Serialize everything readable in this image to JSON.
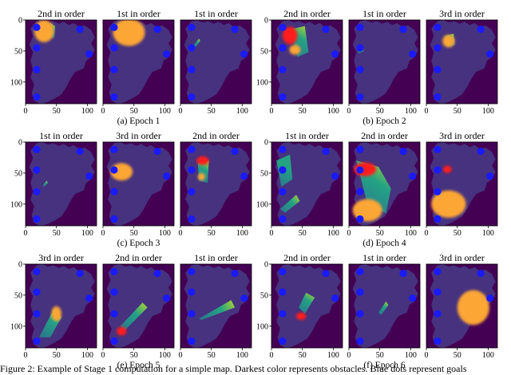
{
  "colors": {
    "background": "#440154",
    "free_space": "#46327e",
    "goal": "#1a1aff",
    "blob_orange": "#fca636",
    "blob_red": "#ff1a1a",
    "wedge_green": "#22a884",
    "wedge_yellow": "#bddf26"
  },
  "axis_ticks": {
    "x": [
      "0",
      "50",
      "100"
    ],
    "y": [
      "0",
      "50",
      "100"
    ],
    "xlim": [
      0,
      115
    ],
    "ylim": [
      0,
      135
    ]
  },
  "map": {
    "outline": [
      [
        18,
        2
      ],
      [
        27,
        0
      ],
      [
        36,
        4
      ],
      [
        45,
        2
      ],
      [
        54,
        6
      ],
      [
        62,
        3
      ],
      [
        70,
        8
      ],
      [
        78,
        5
      ],
      [
        86,
        11
      ],
      [
        96,
        9
      ],
      [
        106,
        16
      ],
      [
        112,
        28
      ],
      [
        106,
        38
      ],
      [
        112,
        48
      ],
      [
        106,
        60
      ],
      [
        98,
        66
      ],
      [
        94,
        78
      ],
      [
        80,
        84
      ],
      [
        72,
        96
      ],
      [
        66,
        108
      ],
      [
        58,
        120
      ],
      [
        48,
        126
      ],
      [
        36,
        132
      ],
      [
        24,
        136
      ],
      [
        14,
        130
      ],
      [
        10,
        118
      ],
      [
        14,
        104
      ],
      [
        8,
        92
      ],
      [
        12,
        80
      ],
      [
        8,
        66
      ],
      [
        12,
        52
      ],
      [
        6,
        40
      ],
      [
        12,
        26
      ],
      [
        8,
        14
      ]
    ],
    "goals": [
      [
        18,
        12
      ],
      [
        88,
        15
      ],
      [
        18,
        45
      ],
      [
        103,
        55
      ],
      [
        18,
        80
      ],
      [
        18,
        124
      ]
    ]
  },
  "groups": [
    {
      "caption": "(a) Epoch 1",
      "panels": [
        {
          "title": "2nd in order",
          "blobs": [
            {
              "cx": 30,
              "cy": 18,
              "rx": 16,
              "ry": 18,
              "color": "orange"
            }
          ],
          "wedges": [
            {
              "points": [
                [
                  40,
                  5
                ],
                [
                  48,
                  10
                ],
                [
                  46,
                  30
                ],
                [
                  40,
                  28
                ]
              ],
              "from": "green",
              "to": "yellow"
            }
          ]
        },
        {
          "title": "1st in order",
          "blobs": [
            {
              "cx": 42,
              "cy": 20,
              "rx": 26,
              "ry": 22,
              "color": "orange"
            }
          ],
          "wedges": []
        },
        {
          "title": "1st in order",
          "blobs": [],
          "wedges": [
            {
              "points": [
                [
                  22,
                  40
                ],
                [
                  30,
                  30
                ],
                [
                  32,
                  34
                ],
                [
                  24,
                  44
                ]
              ],
              "from": "green",
              "to": "yellow"
            }
          ]
        }
      ]
    },
    {
      "caption": "(b) Epoch 2",
      "panels": [
        {
          "title": "2nd in order",
          "blobs": [
            {
              "cx": 30,
              "cy": 25,
              "rx": 12,
              "ry": 14,
              "color": "red"
            },
            {
              "cx": 38,
              "cy": 48,
              "rx": 9,
              "ry": 8,
              "color": "orange"
            }
          ],
          "wedges": [
            {
              "points": [
                [
                  30,
                  15
                ],
                [
                  54,
                  10
                ],
                [
                  60,
                  52
                ],
                [
                  42,
                  60
                ]
              ],
              "from": "green",
              "to": "yellow"
            }
          ]
        },
        {
          "title": "1st in order",
          "blobs": [],
          "wedges": [
            {
              "points": [
                [
                  14,
                  48
                ],
                [
                  22,
                  42
                ],
                [
                  24,
                  50
                ],
                [
                  16,
                  54
                ]
              ],
              "from": "green",
              "to": "yellow"
            }
          ]
        },
        {
          "title": "3rd in order",
          "blobs": [
            {
              "cx": 36,
              "cy": 34,
              "rx": 10,
              "ry": 10,
              "color": "orange"
            }
          ],
          "wedges": [
            {
              "points": [
                [
                  30,
                  26
                ],
                [
                  44,
                  22
                ],
                [
                  46,
                  40
                ],
                [
                  34,
                  44
                ]
              ],
              "from": "green",
              "to": "yellow"
            }
          ]
        }
      ]
    },
    {
      "caption": "(c) Epoch 3",
      "panels": [
        {
          "title": "1st in order",
          "blobs": [],
          "wedges": [
            {
              "points": [
                [
                  28,
                  70
                ],
                [
                  34,
                  62
                ],
                [
                  36,
                  66
                ],
                [
                  30,
                  72
                ]
              ],
              "from": "green",
              "to": "yellow"
            }
          ]
        },
        {
          "title": "3rd in order",
          "blobs": [
            {
              "cx": 30,
              "cy": 48,
              "rx": 18,
              "ry": 14,
              "color": "orange"
            }
          ],
          "wedges": []
        },
        {
          "title": "2nd in order",
          "blobs": [
            {
              "cx": 36,
              "cy": 30,
              "rx": 10,
              "ry": 7,
              "color": "red"
            },
            {
              "cx": 34,
              "cy": 56,
              "rx": 6,
              "ry": 6,
              "color": "orange"
            }
          ],
          "wedges": [
            {
              "points": [
                [
                  28,
                  34
                ],
                [
                  46,
                  30
                ],
                [
                  44,
                  66
                ],
                [
                  30,
                  62
                ]
              ],
              "from": "green",
              "to": "yellow"
            }
          ]
        }
      ]
    },
    {
      "caption": "(d) Epoch 4",
      "panels": [
        {
          "title": "1st in order",
          "blobs": [],
          "wedges": [
            {
              "points": [
                [
                  14,
                  108
                ],
                [
                  40,
                  85
                ],
                [
                  46,
                  95
                ],
                [
                  22,
                  114
                ]
              ],
              "from": "green",
              "to": "yellow"
            },
            {
              "points": [
                [
                  8,
                  30
                ],
                [
                  30,
                  20
                ],
                [
                  34,
                  60
                ],
                [
                  16,
                  72
                ]
              ],
              "from": "green",
              "to": "green"
            }
          ]
        },
        {
          "title": "2nd in order",
          "blobs": [
            {
              "cx": 26,
              "cy": 44,
              "rx": 18,
              "ry": 11,
              "color": "red"
            },
            {
              "cx": 30,
              "cy": 110,
              "rx": 24,
              "ry": 18,
              "color": "orange"
            }
          ],
          "wedges": [
            {
              "points": [
                [
                  12,
                  30
                ],
                [
                  48,
                  40
                ],
                [
                  68,
                  75
                ],
                [
                  60,
                  115
                ],
                [
                  30,
                  100
                ]
              ],
              "from": "green",
              "to": "yellow"
            }
          ]
        },
        {
          "title": "3rd in order",
          "blobs": [
            {
              "cx": 34,
              "cy": 44,
              "rx": 7,
              "ry": 6,
              "color": "red"
            },
            {
              "cx": 36,
              "cy": 100,
              "rx": 28,
              "ry": 22,
              "color": "orange"
            }
          ],
          "wedges": []
        }
      ]
    },
    {
      "caption": "(e) Epoch 5",
      "panels": [
        {
          "title": "3rd in order",
          "blobs": [
            {
              "cx": 50,
              "cy": 80,
              "rx": 8,
              "ry": 12,
              "color": "orange"
            }
          ],
          "wedges": [
            {
              "points": [
                [
                  22,
                  118
                ],
                [
                  46,
                  72
                ],
                [
                  58,
                  86
                ],
                [
                  40,
                  118
                ]
              ],
              "from": "green",
              "to": "yellow"
            }
          ]
        },
        {
          "title": "2nd in order",
          "blobs": [
            {
              "cx": 30,
              "cy": 108,
              "rx": 8,
              "ry": 7,
              "color": "red"
            }
          ],
          "wedges": [
            {
              "points": [
                [
                  28,
                  100
                ],
                [
                  64,
                  62
                ],
                [
                  72,
                  70
                ],
                [
                  34,
                  108
                ]
              ],
              "from": "green",
              "to": "yellow"
            }
          ]
        },
        {
          "title": "1st in order",
          "blobs": [],
          "wedges": [
            {
              "points": [
                [
                  30,
                  88
                ],
                [
                  82,
                  58
                ],
                [
                  88,
                  70
                ],
                [
                  34,
                  90
                ]
              ],
              "from": "green",
              "to": "yellow"
            }
          ]
        }
      ]
    },
    {
      "caption": "(f) Epoch 6",
      "panels": [
        {
          "title": "2nd in order",
          "blobs": [
            {
              "cx": 48,
              "cy": 84,
              "rx": 8,
              "ry": 6,
              "color": "red"
            }
          ],
          "wedges": [
            {
              "points": [
                [
                  44,
                  70
                ],
                [
                  56,
                  46
                ],
                [
                  70,
                  54
                ],
                [
                  54,
                  80
                ]
              ],
              "from": "green",
              "to": "yellow"
            }
          ]
        },
        {
          "title": "1st in order",
          "blobs": [],
          "wedges": [
            {
              "points": [
                [
                  48,
                  78
                ],
                [
                  60,
                  60
                ],
                [
                  64,
                  66
                ],
                [
                  52,
                  82
                ]
              ],
              "from": "green",
              "to": "yellow"
            }
          ]
        },
        {
          "title": "3rd in order",
          "blobs": [
            {
              "cx": 76,
              "cy": 70,
              "rx": 26,
              "ry": 28,
              "color": "orange"
            }
          ],
          "wedges": []
        }
      ]
    }
  ],
  "caption_text": "Figure 2: Example of Stage 1 computation for a simple map. Darkest color represents obstacles. Blue dots represent goals"
}
